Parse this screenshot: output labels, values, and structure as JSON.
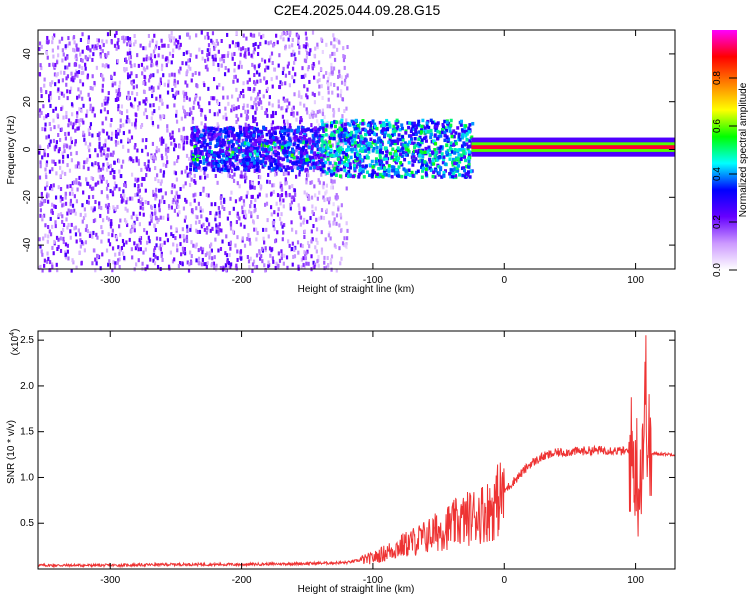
{
  "title": "C2E4.2025.044.09.28.G15",
  "chart_data": [
    {
      "type": "heatmap",
      "xlabel": "Height of straight line (km)",
      "ylabel": "Frequency (Hz)",
      "xlim": [
        -355,
        130
      ],
      "ylim": [
        -50,
        50
      ],
      "xticks": [
        -300,
        -200,
        -100,
        0,
        100
      ],
      "xtick_labels": [
        "-300",
        "-200",
        "-100",
        "0",
        "100"
      ],
      "yticks": [
        -40,
        -20,
        0,
        20,
        40
      ],
      "ytick_labels": [
        "-40",
        "-20",
        "0",
        "20",
        "40"
      ],
      "colorbar": {
        "label": "Normalized spectral amplitude",
        "range": [
          0,
          1
        ],
        "ticks": [
          0,
          0.2,
          0.4,
          0.6,
          0.8
        ],
        "tick_labels": [
          "0.0",
          "0.2",
          "0.4",
          "0.6",
          "0.8"
        ],
        "colormap": [
          "#ffffff",
          "#cc99ff",
          "#6600ff",
          "#0000ff",
          "#00ffff",
          "#00ff00",
          "#ffff00",
          "#ff8000",
          "#ff0000",
          "#ff00ff"
        ]
      },
      "description_of_structure": {
        "noise_region_x": [
          -355,
          -145
        ],
        "signal_onset_x": -145,
        "carrier_freq_hz": 1,
        "bright_core_x": [
          -25,
          130
        ]
      }
    },
    {
      "type": "line",
      "xlabel": "Height of straight line (km)",
      "ylabel": "SNR (10 * v/v)",
      "y_multiplier": "(x10",
      "y_multiplier_exp": "4",
      "y_multiplier_close": ")",
      "xlim": [
        -355,
        130
      ],
      "ylim": [
        0,
        26000
      ],
      "xticks": [
        -300,
        -200,
        -100,
        0,
        100
      ],
      "xtick_labels": [
        "-300",
        "-200",
        "-100",
        "0",
        "100"
      ],
      "yticks": [
        5000,
        10000,
        15000,
        20000,
        25000
      ],
      "ytick_labels": [
        "0.5",
        "1.0",
        "1.5",
        "2.0",
        "2.5"
      ],
      "color": "#ee3333",
      "series": [
        {
          "x": [
            -355,
            -300,
            -250,
            -200,
            -150,
            -120,
            -100,
            -80,
            -60,
            -40,
            -20,
            -10,
            0,
            10,
            20,
            30,
            40,
            60,
            80,
            95,
            100,
            103,
            106,
            108,
            110,
            115,
            130
          ],
          "values": [
            400,
            400,
            500,
            500,
            600,
            700,
            1200,
            2400,
            3500,
            4800,
            6000,
            6500,
            8500,
            10000,
            11500,
            12300,
            12700,
            12900,
            13000,
            12800,
            11500,
            9500,
            15000,
            20000,
            12500,
            12600,
            12500
          ]
        }
      ]
    }
  ]
}
